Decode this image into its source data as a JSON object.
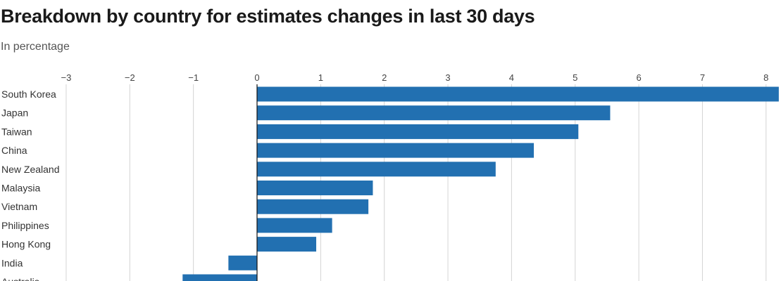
{
  "title": "Breakdown by country for estimates changes in last 30 days",
  "subtitle": "In percentage",
  "colors": {
    "bar": "#2270b1",
    "grid": "#d4d4d4",
    "zero_line": "#111111"
  },
  "chart_data": {
    "type": "bar",
    "orientation": "horizontal",
    "title": "Breakdown by country for estimates changes in last 30 days",
    "subtitle": "In percentage",
    "xlabel": "",
    "ylabel": "",
    "xlim": [
      -3,
      8.2
    ],
    "x_ticks": [
      -3,
      -2,
      -1,
      0,
      1,
      2,
      3,
      4,
      5,
      6,
      7,
      8
    ],
    "x_tick_labels": [
      "−3",
      "−2",
      "−1",
      "0",
      "1",
      "2",
      "3",
      "4",
      "5",
      "6",
      "7",
      "8"
    ],
    "grid": true,
    "categories": [
      "South Korea",
      "Japan",
      "Taiwan",
      "China",
      "New Zealand",
      "Malaysia",
      "Vietnam",
      "Philippines",
      "Hong Kong",
      "India",
      "Australia"
    ],
    "values": [
      8.2,
      5.55,
      5.05,
      4.35,
      3.75,
      1.82,
      1.75,
      1.18,
      0.93,
      -0.45,
      -1.17
    ]
  }
}
